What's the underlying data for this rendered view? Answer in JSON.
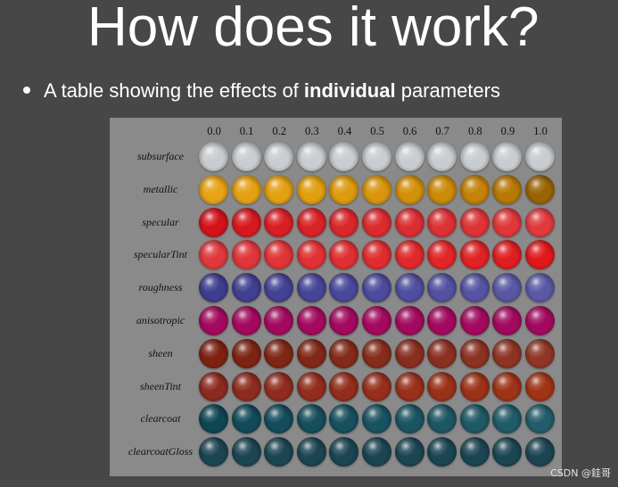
{
  "slide": {
    "title": "How does it work?",
    "bullet_prefix": "A table showing the effects of ",
    "bullet_bold": "individual",
    "bullet_suffix": " parameters"
  },
  "table": {
    "columns": [
      "0.0",
      "0.1",
      "0.2",
      "0.3",
      "0.4",
      "0.5",
      "0.6",
      "0.7",
      "0.8",
      "0.9",
      "1.0"
    ],
    "rows": [
      {
        "label": "subsurface",
        "colors": [
          "#c9cdd0",
          "#c9cdd0",
          "#c9cdd0",
          "#c9cdd0",
          "#c9cdd0",
          "#c9cdd0",
          "#c9cdd0",
          "#c9cdd0",
          "#c9cdd0",
          "#c9cdd0",
          "#c9cdd0"
        ]
      },
      {
        "label": "metallic",
        "colors": [
          "#e6a316",
          "#e5a114",
          "#e3a012",
          "#e19e10",
          "#de9b0e",
          "#d9960c",
          "#d3900a",
          "#cc8a08",
          "#c48206",
          "#b87804",
          "#9a6404"
        ]
      },
      {
        "label": "specular",
        "colors": [
          "#d4121a",
          "#d6191f",
          "#d81f24",
          "#d92328",
          "#da272c",
          "#db2b2f",
          "#dc2e32",
          "#dd3135",
          "#de3437",
          "#df373a",
          "#e03a3d"
        ]
      },
      {
        "label": "specularTint",
        "colors": [
          "#e0383b",
          "#e03639",
          "#e03437",
          "#e03235",
          "#e02f32",
          "#e02c2f",
          "#e0292c",
          "#e02628",
          "#e02225",
          "#e01e20",
          "#e0181b"
        ]
      },
      {
        "label": "roughness",
        "colors": [
          "#3e3d8e",
          "#413f91",
          "#444294",
          "#474597",
          "#4a489a",
          "#4d4b9c",
          "#504e9e",
          "#5351a0",
          "#5654a2",
          "#5957a3",
          "#5b59a4"
        ]
      },
      {
        "label": "anisotropic",
        "colors": [
          "#a30a5f",
          "#a30a5f",
          "#a30a5f",
          "#a30a5f",
          "#a30a5f",
          "#a30a5f",
          "#a30a5f",
          "#a30a5f",
          "#a30a5f",
          "#a30a5f",
          "#a30a5f"
        ]
      },
      {
        "label": "sheen",
        "colors": [
          "#7d2212",
          "#7e2414",
          "#802616",
          "#822818",
          "#842a1a",
          "#862c1c",
          "#882e1e",
          "#8a3020",
          "#8c3222",
          "#8e3424",
          "#903626"
        ]
      },
      {
        "label": "sheenTint",
        "colors": [
          "#8c2a20",
          "#8e2b1f",
          "#902c1e",
          "#922d1d",
          "#942e1c",
          "#962f1b",
          "#98301a",
          "#9a3119",
          "#9c3218",
          "#9e3317",
          "#a03416"
        ]
      },
      {
        "label": "clearcoat",
        "colors": [
          "#0e4654",
          "#114a58",
          "#134c5a",
          "#154e5c",
          "#17505e",
          "#195260",
          "#1b5462",
          "#1d5664",
          "#1f5866",
          "#215a68",
          "#235c6a"
        ]
      },
      {
        "label": "clearcoatGloss",
        "colors": [
          "#1c4553",
          "#1c4553",
          "#1c4553",
          "#1c4553",
          "#1c4553",
          "#1c4553",
          "#1c4553",
          "#1c4553",
          "#1c4553",
          "#1c4553",
          "#1c4553"
        ]
      }
    ]
  },
  "watermark": "CSDN @銈哥"
}
